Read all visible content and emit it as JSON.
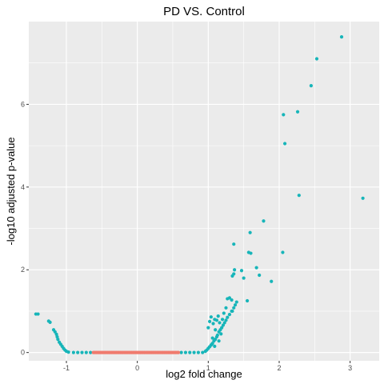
{
  "chart_data": {
    "type": "scatter",
    "title": "PD VS. Control",
    "xlabel": "log2 fold change",
    "ylabel": "-log10 adjusted p-value",
    "xlim": [
      -1.53,
      3.41
    ],
    "ylim": [
      -0.2,
      8.0
    ],
    "x_ticks": [
      -1,
      0,
      1,
      2,
      3
    ],
    "x_tick_labels": [
      "-1",
      "0",
      "1",
      "2",
      "3"
    ],
    "y_ticks": [
      0,
      2,
      4,
      6
    ],
    "y_tick_labels": [
      "0",
      "2",
      "4",
      "6"
    ],
    "grid": true,
    "legend": "none",
    "colors": {
      "significant": "#17b5b9",
      "not_significant": "#f07b6e",
      "panel": "#ebebeb",
      "grid": "#ffffff"
    },
    "series": [
      {
        "category": "significant",
        "points": [
          [
            -1.43,
            0.93
          ],
          [
            -1.4,
            0.93
          ],
          [
            -1.25,
            0.76
          ],
          [
            -1.23,
            0.73
          ],
          [
            -1.18,
            0.55
          ],
          [
            -1.16,
            0.5
          ],
          [
            -1.14,
            0.44
          ],
          [
            -1.13,
            0.38
          ],
          [
            -1.12,
            0.32
          ],
          [
            -1.1,
            0.25
          ],
          [
            -1.08,
            0.2
          ],
          [
            -1.06,
            0.15
          ],
          [
            -1.04,
            0.1
          ],
          [
            -1.02,
            0.06
          ],
          [
            -1.0,
            0.03
          ],
          [
            -0.97,
            0.01
          ],
          [
            -0.9,
            0.0
          ],
          [
            -0.84,
            0.0
          ],
          [
            -0.78,
            0.0
          ],
          [
            -0.72,
            0.0
          ],
          [
            -0.66,
            0.0
          ],
          [
            0.62,
            0.0
          ],
          [
            0.68,
            0.0
          ],
          [
            0.74,
            0.0
          ],
          [
            0.8,
            0.0
          ],
          [
            0.86,
            0.0
          ],
          [
            0.92,
            0.0
          ],
          [
            0.96,
            0.03
          ],
          [
            0.98,
            0.06
          ],
          [
            1.0,
            0.1
          ],
          [
            1.02,
            0.14
          ],
          [
            1.04,
            0.18
          ],
          [
            1.06,
            0.22
          ],
          [
            1.08,
            0.28
          ],
          [
            1.1,
            0.32
          ],
          [
            1.12,
            0.38
          ],
          [
            1.13,
            0.42
          ],
          [
            1.15,
            0.5
          ],
          [
            1.17,
            0.55
          ],
          [
            1.19,
            0.6
          ],
          [
            1.21,
            0.66
          ],
          [
            1.23,
            0.72
          ],
          [
            1.25,
            0.78
          ],
          [
            1.27,
            0.85
          ],
          [
            1.3,
            0.92
          ],
          [
            1.33,
            1.0
          ],
          [
            1.36,
            1.08
          ],
          [
            1.38,
            1.15
          ],
          [
            1.4,
            1.22
          ],
          [
            1.0,
            0.6
          ],
          [
            1.02,
            0.75
          ],
          [
            1.04,
            0.86
          ],
          [
            1.07,
            0.7
          ],
          [
            1.09,
            0.8
          ],
          [
            1.1,
            0.55
          ],
          [
            1.12,
            0.78
          ],
          [
            1.14,
            0.88
          ],
          [
            1.16,
            0.72
          ],
          [
            1.2,
            0.8
          ],
          [
            1.22,
            0.95
          ],
          [
            1.25,
            1.08
          ],
          [
            1.27,
            1.3
          ],
          [
            1.3,
            1.32
          ],
          [
            1.33,
            1.27
          ],
          [
            1.34,
            1.0
          ],
          [
            1.18,
            0.45
          ],
          [
            1.06,
            0.35
          ],
          [
            1.09,
            0.15
          ],
          [
            1.05,
            0.2
          ],
          [
            1.15,
            0.28
          ],
          [
            1.34,
            1.85
          ],
          [
            1.36,
            1.9
          ],
          [
            1.37,
            2.0
          ],
          [
            1.36,
            2.62
          ],
          [
            1.47,
            1.98
          ],
          [
            1.5,
            1.8
          ],
          [
            1.55,
            1.25
          ],
          [
            1.57,
            2.42
          ],
          [
            1.59,
            2.9
          ],
          [
            1.6,
            2.4
          ],
          [
            1.68,
            2.05
          ],
          [
            1.72,
            1.87
          ],
          [
            1.78,
            3.18
          ],
          [
            1.89,
            1.72
          ],
          [
            2.05,
            2.42
          ],
          [
            2.06,
            5.75
          ],
          [
            2.08,
            5.05
          ],
          [
            2.26,
            5.82
          ],
          [
            2.28,
            3.8
          ],
          [
            2.45,
            6.45
          ],
          [
            2.53,
            7.1
          ],
          [
            2.88,
            7.63
          ],
          [
            3.18,
            3.73
          ]
        ]
      },
      {
        "category": "not_significant",
        "x_range": [
          -0.62,
          0.58
        ],
        "y": 0.0
      }
    ]
  }
}
